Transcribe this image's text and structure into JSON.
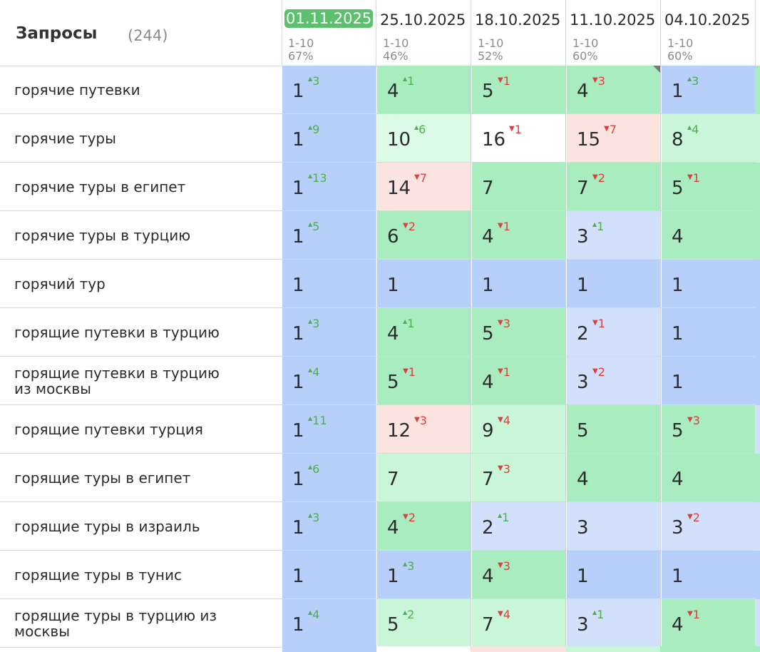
{
  "header": {
    "title": "Запросы",
    "count": "(244)"
  },
  "dates": [
    {
      "label": "01.11.2025",
      "range": "1-10",
      "pct": "67%",
      "active": true
    },
    {
      "label": "25.10.2025",
      "range": "1-10",
      "pct": "46%",
      "active": false
    },
    {
      "label": "18.10.2025",
      "range": "1-10",
      "pct": "52%",
      "active": false
    },
    {
      "label": "11.10.2025",
      "range": "1-10",
      "pct": "60%",
      "active": false
    },
    {
      "label": "04.10.2025",
      "range": "1-10",
      "pct": "60%",
      "active": false
    }
  ],
  "colors": {
    "blue": "#b8cffa",
    "lightblue": "#d3e0fb",
    "green": "#a8ecc0",
    "lightgreen": "#c9f5d9",
    "mint": "#dcfbe6",
    "pink": "#fbe3e0",
    "white": "#ffffff"
  },
  "rows": [
    {
      "query": "горячие путевки",
      "cells": [
        {
          "pos": "1",
          "delta": "3",
          "dir": "up",
          "bg": "blue"
        },
        {
          "pos": "4",
          "delta": "1",
          "dir": "up",
          "bg": "green"
        },
        {
          "pos": "5",
          "delta": "1",
          "dir": "down",
          "bg": "green"
        },
        {
          "pos": "4",
          "delta": "3",
          "dir": "down",
          "bg": "green",
          "corner": true
        },
        {
          "pos": "1",
          "delta": "3",
          "dir": "up",
          "bg": "blue"
        }
      ],
      "edge": "green"
    },
    {
      "query": "горячие туры",
      "cells": [
        {
          "pos": "1",
          "delta": "9",
          "dir": "up",
          "bg": "blue"
        },
        {
          "pos": "10",
          "delta": "6",
          "dir": "up",
          "bg": "mint"
        },
        {
          "pos": "16",
          "delta": "1",
          "dir": "down",
          "bg": "white"
        },
        {
          "pos": "15",
          "delta": "7",
          "dir": "down",
          "bg": "pink"
        },
        {
          "pos": "8",
          "delta": "4",
          "dir": "up",
          "bg": "lightgreen"
        }
      ],
      "edge": "lightgreen"
    },
    {
      "query": "горячие туры в египет",
      "cells": [
        {
          "pos": "1",
          "delta": "13",
          "dir": "up",
          "bg": "blue"
        },
        {
          "pos": "14",
          "delta": "7",
          "dir": "down",
          "bg": "pink"
        },
        {
          "pos": "7",
          "delta": "",
          "dir": "",
          "bg": "green"
        },
        {
          "pos": "7",
          "delta": "2",
          "dir": "down",
          "bg": "green"
        },
        {
          "pos": "5",
          "delta": "1",
          "dir": "down",
          "bg": "green"
        }
      ],
      "edge": "green"
    },
    {
      "query": "горячие туры в турцию",
      "cells": [
        {
          "pos": "1",
          "delta": "5",
          "dir": "up",
          "bg": "blue"
        },
        {
          "pos": "6",
          "delta": "2",
          "dir": "down",
          "bg": "green"
        },
        {
          "pos": "4",
          "delta": "1",
          "dir": "down",
          "bg": "green"
        },
        {
          "pos": "3",
          "delta": "1",
          "dir": "up",
          "bg": "lightblue"
        },
        {
          "pos": "4",
          "delta": "",
          "dir": "",
          "bg": "green"
        }
      ],
      "edge": "green"
    },
    {
      "query": "горячий тур",
      "cells": [
        {
          "pos": "1",
          "delta": "",
          "dir": "",
          "bg": "blue"
        },
        {
          "pos": "1",
          "delta": "",
          "dir": "",
          "bg": "blue"
        },
        {
          "pos": "1",
          "delta": "",
          "dir": "",
          "bg": "blue"
        },
        {
          "pos": "1",
          "delta": "",
          "dir": "",
          "bg": "blue"
        },
        {
          "pos": "1",
          "delta": "",
          "dir": "",
          "bg": "blue"
        }
      ],
      "edge": "blue"
    },
    {
      "query": "горящие путевки в турцию",
      "cells": [
        {
          "pos": "1",
          "delta": "3",
          "dir": "up",
          "bg": "blue"
        },
        {
          "pos": "4",
          "delta": "1",
          "dir": "up",
          "bg": "green"
        },
        {
          "pos": "5",
          "delta": "3",
          "dir": "down",
          "bg": "green"
        },
        {
          "pos": "2",
          "delta": "1",
          "dir": "down",
          "bg": "lightblue"
        },
        {
          "pos": "1",
          "delta": "",
          "dir": "",
          "bg": "blue"
        }
      ],
      "edge": "blue"
    },
    {
      "query": "горящие путевки в турцию\nиз москвы",
      "cells": [
        {
          "pos": "1",
          "delta": "4",
          "dir": "up",
          "bg": "blue"
        },
        {
          "pos": "5",
          "delta": "1",
          "dir": "down",
          "bg": "green"
        },
        {
          "pos": "4",
          "delta": "1",
          "dir": "down",
          "bg": "green"
        },
        {
          "pos": "3",
          "delta": "2",
          "dir": "down",
          "bg": "lightblue"
        },
        {
          "pos": "1",
          "delta": "",
          "dir": "",
          "bg": "blue"
        }
      ],
      "edge": "blue"
    },
    {
      "query": "горящие путевки турция",
      "cells": [
        {
          "pos": "1",
          "delta": "11",
          "dir": "up",
          "bg": "blue"
        },
        {
          "pos": "12",
          "delta": "3",
          "dir": "down",
          "bg": "pink"
        },
        {
          "pos": "9",
          "delta": "4",
          "dir": "down",
          "bg": "lightgreen"
        },
        {
          "pos": "5",
          "delta": "",
          "dir": "",
          "bg": "green"
        },
        {
          "pos": "5",
          "delta": "3",
          "dir": "down",
          "bg": "green"
        }
      ],
      "edge": "lightblue"
    },
    {
      "query": "горящие туры в египет",
      "cells": [
        {
          "pos": "1",
          "delta": "6",
          "dir": "up",
          "bg": "blue"
        },
        {
          "pos": "7",
          "delta": "",
          "dir": "",
          "bg": "lightgreen"
        },
        {
          "pos": "7",
          "delta": "3",
          "dir": "down",
          "bg": "lightgreen"
        },
        {
          "pos": "4",
          "delta": "",
          "dir": "",
          "bg": "green"
        },
        {
          "pos": "4",
          "delta": "",
          "dir": "",
          "bg": "green"
        }
      ],
      "edge": "green"
    },
    {
      "query": "горящие туры в израиль",
      "cells": [
        {
          "pos": "1",
          "delta": "3",
          "dir": "up",
          "bg": "blue"
        },
        {
          "pos": "4",
          "delta": "2",
          "dir": "down",
          "bg": "green"
        },
        {
          "pos": "2",
          "delta": "1",
          "dir": "up",
          "bg": "lightblue"
        },
        {
          "pos": "3",
          "delta": "",
          "dir": "",
          "bg": "lightblue"
        },
        {
          "pos": "3",
          "delta": "2",
          "dir": "down",
          "bg": "lightblue"
        }
      ],
      "edge": "lightblue"
    },
    {
      "query": "горящие туры в тунис",
      "cells": [
        {
          "pos": "1",
          "delta": "",
          "dir": "",
          "bg": "blue"
        },
        {
          "pos": "1",
          "delta": "3",
          "dir": "up",
          "bg": "blue"
        },
        {
          "pos": "4",
          "delta": "3",
          "dir": "down",
          "bg": "green"
        },
        {
          "pos": "1",
          "delta": "",
          "dir": "",
          "bg": "blue"
        },
        {
          "pos": "1",
          "delta": "",
          "dir": "",
          "bg": "blue"
        }
      ],
      "edge": "blue"
    },
    {
      "query": "горящие туры в турцию из\nмосквы",
      "cells": [
        {
          "pos": "1",
          "delta": "4",
          "dir": "up",
          "bg": "blue"
        },
        {
          "pos": "5",
          "delta": "2",
          "dir": "up",
          "bg": "lightgreen"
        },
        {
          "pos": "7",
          "delta": "4",
          "dir": "down",
          "bg": "lightgreen"
        },
        {
          "pos": "3",
          "delta": "1",
          "dir": "up",
          "bg": "lightblue"
        },
        {
          "pos": "4",
          "delta": "1",
          "dir": "down",
          "bg": "green"
        }
      ],
      "edge": "lightblue"
    }
  ]
}
